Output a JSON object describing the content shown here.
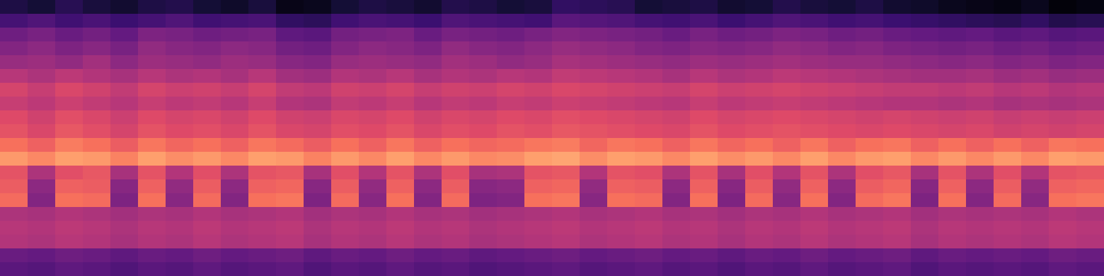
{
  "chart_data": {
    "type": "heatmap",
    "tick_labels": false,
    "zlim": [
      -80,
      0
    ],
    "cells": [
      [
        -70,
        -72,
        -68,
        -71,
        -73,
        -70,
        -69,
        -72,
        -74,
        -71,
        -77,
        -76,
        -72,
        -70,
        -71,
        -73,
        -69,
        -70,
        -72,
        -71,
        -66,
        -67,
        -68,
        -72,
        -71,
        -70,
        -73,
        -72,
        -69,
        -71,
        -72,
        -70,
        -73,
        -74,
        -76,
        -77,
        -78,
        -76,
        -79,
        -78
      ],
      [
        -62,
        -60,
        -63,
        -61,
        -64,
        -62,
        -60,
        -63,
        -62,
        -61,
        -66,
        -67,
        -63,
        -61,
        -62,
        -64,
        -60,
        -61,
        -62,
        -63,
        -58,
        -59,
        -60,
        -62,
        -63,
        -61,
        -64,
        -62,
        -60,
        -61,
        -63,
        -62,
        -64,
        -65,
        -66,
        -67,
        -68,
        -66,
        -69,
        -68
      ],
      [
        -54,
        -52,
        -55,
        -53,
        -56,
        -51,
        -52,
        -54,
        -53,
        -52,
        -57,
        -58,
        -53,
        -52,
        -51,
        -55,
        -52,
        -53,
        -54,
        -52,
        -50,
        -51,
        -52,
        -53,
        -55,
        -52,
        -54,
        -53,
        -51,
        -52,
        -54,
        -53,
        -55,
        -56,
        -57,
        -56,
        -58,
        -57,
        -59,
        -58
      ],
      [
        -50,
        -48,
        -51,
        -49,
        -52,
        -47,
        -49,
        -50,
        -48,
        -49,
        -53,
        -54,
        -50,
        -48,
        -49,
        -51,
        -47,
        -49,
        -50,
        -48,
        -46,
        -47,
        -48,
        -50,
        -51,
        -49,
        -50,
        -49,
        -47,
        -48,
        -50,
        -49,
        -51,
        -52,
        -53,
        -52,
        -54,
        -53,
        -55,
        -54
      ],
      [
        -46,
        -45,
        -47,
        -44,
        -48,
        -45,
        -46,
        -47,
        -45,
        -46,
        -49,
        -50,
        -46,
        -45,
        -46,
        -47,
        -44,
        -45,
        -47,
        -46,
        -43,
        -44,
        -45,
        -46,
        -47,
        -45,
        -46,
        -45,
        -44,
        -45,
        -46,
        -46,
        -47,
        -48,
        -49,
        -48,
        -50,
        -49,
        -51,
        -50
      ],
      [
        -40,
        -42,
        -39,
        -41,
        -43,
        -40,
        -42,
        -41,
        -43,
        -40,
        -44,
        -45,
        -41,
        -42,
        -40,
        -43,
        -41,
        -42,
        -40,
        -41,
        -38,
        -39,
        -40,
        -41,
        -43,
        -40,
        -42,
        -41,
        -39,
        -40,
        -41,
        -42,
        -43,
        -44,
        -44,
        -43,
        -45,
        -44,
        -46,
        -45
      ],
      [
        -34,
        -37,
        -33,
        -35,
        -38,
        -34,
        -36,
        -35,
        -37,
        -34,
        -38,
        -39,
        -35,
        -36,
        -34,
        -37,
        -35,
        -36,
        -34,
        -35,
        -33,
        -34,
        -35,
        -36,
        -37,
        -34,
        -36,
        -35,
        -34,
        -35,
        -36,
        -37,
        -38,
        -38,
        -39,
        -38,
        -40,
        -39,
        -41,
        -40
      ],
      [
        -37,
        -39,
        -36,
        -38,
        -40,
        -37,
        -39,
        -38,
        -40,
        -37,
        -41,
        -42,
        -38,
        -39,
        -37,
        -40,
        -38,
        -39,
        -37,
        -38,
        -36,
        -37,
        -38,
        -39,
        -40,
        -37,
        -39,
        -38,
        -37,
        -38,
        -39,
        -40,
        -41,
        -41,
        -42,
        -41,
        -43,
        -42,
        -43,
        -42
      ],
      [
        -32,
        -35,
        -31,
        -33,
        -36,
        -32,
        -34,
        -33,
        -35,
        -32,
        -35,
        -36,
        -33,
        -34,
        -32,
        -35,
        -33,
        -34,
        -32,
        -33,
        -31,
        -32,
        -33,
        -34,
        -35,
        -32,
        -34,
        -33,
        -32,
        -33,
        -34,
        -35,
        -34,
        -35,
        -36,
        -35,
        -37,
        -36,
        -37,
        -36
      ],
      [
        -30,
        -33,
        -29,
        -31,
        -34,
        -30,
        -32,
        -31,
        -33,
        -30,
        -33,
        -34,
        -31,
        -32,
        -30,
        -33,
        -31,
        -32,
        -30,
        -31,
        -29,
        -30,
        -31,
        -32,
        -33,
        -30,
        -32,
        -31,
        -30,
        -31,
        -32,
        -33,
        -32,
        -33,
        -34,
        -33,
        -35,
        -34,
        -35,
        -34
      ],
      [
        -24,
        -27,
        -22,
        -24,
        -28,
        -23,
        -26,
        -24,
        -27,
        -23,
        -25,
        -28,
        -24,
        -27,
        -23,
        -27,
        -24,
        -26,
        -25,
        -23,
        -22,
        -26,
        -23,
        -24,
        -27,
        -23,
        -26,
        -24,
        -27,
        -23,
        -27,
        -24,
        -23,
        -27,
        -24,
        -27,
        -24,
        -27,
        -23,
        -24
      ],
      [
        -17,
        -20,
        -16,
        -17,
        -21,
        -16,
        -19,
        -17,
        -20,
        -16,
        -17,
        -21,
        -17,
        -20,
        -16,
        -20,
        -17,
        -20,
        -19,
        -16,
        -15,
        -19,
        -16,
        -17,
        -20,
        -16,
        -19,
        -17,
        -20,
        -16,
        -20,
        -17,
        -16,
        -20,
        -17,
        -20,
        -17,
        -20,
        -16,
        -17
      ],
      [
        -30,
        -42,
        -31,
        -29,
        -43,
        -30,
        -41,
        -31,
        -42,
        -30,
        -29,
        -43,
        -31,
        -41,
        -30,
        -42,
        -31,
        -43,
        -42,
        -30,
        -29,
        -41,
        -30,
        -31,
        -42,
        -30,
        -43,
        -31,
        -41,
        -30,
        -42,
        -31,
        -29,
        -43,
        -30,
        -42,
        -31,
        -41,
        -30,
        -29
      ],
      [
        -28,
        -48,
        -27,
        -28,
        -49,
        -27,
        -47,
        -28,
        -48,
        -27,
        -26,
        -49,
        -28,
        -47,
        -27,
        -48,
        -28,
        -49,
        -48,
        -27,
        -26,
        -47,
        -27,
        -28,
        -48,
        -27,
        -49,
        -28,
        -47,
        -27,
        -48,
        -28,
        -26,
        -49,
        -27,
        -48,
        -28,
        -47,
        -27,
        -26
      ],
      [
        -25,
        -50,
        -24,
        -25,
        -51,
        -24,
        -49,
        -25,
        -50,
        -24,
        -23,
        -51,
        -25,
        -49,
        -24,
        -50,
        -25,
        -51,
        -50,
        -24,
        -23,
        -49,
        -24,
        -25,
        -50,
        -24,
        -51,
        -25,
        -49,
        -24,
        -50,
        -25,
        -23,
        -51,
        -24,
        -50,
        -25,
        -49,
        -24,
        -23
      ],
      [
        -42,
        -43,
        -41,
        -42,
        -44,
        -42,
        -43,
        -41,
        -43,
        -42,
        -41,
        -44,
        -42,
        -43,
        -41,
        -43,
        -42,
        -44,
        -43,
        -42,
        -41,
        -43,
        -42,
        -41,
        -43,
        -42,
        -44,
        -42,
        -43,
        -41,
        -43,
        -42,
        -41,
        -44,
        -42,
        -43,
        -42,
        -43,
        -41,
        -42
      ],
      [
        -40,
        -41,
        -39,
        -40,
        -42,
        -40,
        -41,
        -39,
        -41,
        -40,
        -39,
        -42,
        -40,
        -41,
        -39,
        -41,
        -40,
        -42,
        -41,
        -40,
        -39,
        -41,
        -40,
        -39,
        -41,
        -40,
        -42,
        -40,
        -41,
        -39,
        -41,
        -40,
        -39,
        -42,
        -40,
        -41,
        -40,
        -41,
        -39,
        -40
      ],
      [
        -41,
        -42,
        -40,
        -41,
        -43,
        -41,
        -42,
        -40,
        -42,
        -41,
        -40,
        -43,
        -41,
        -42,
        -40,
        -42,
        -41,
        -43,
        -42,
        -41,
        -40,
        -42,
        -41,
        -40,
        -42,
        -41,
        -43,
        -41,
        -42,
        -40,
        -42,
        -41,
        -40,
        -43,
        -41,
        -42,
        -41,
        -42,
        -40,
        -41
      ],
      [
        -55,
        -56,
        -54,
        -55,
        -57,
        -55,
        -56,
        -54,
        -56,
        -55,
        -54,
        -57,
        -55,
        -56,
        -54,
        -56,
        -55,
        -57,
        -56,
        -55,
        -54,
        -56,
        -55,
        -54,
        -56,
        -55,
        -57,
        -55,
        -56,
        -54,
        -56,
        -55,
        -54,
        -57,
        -55,
        -56,
        -55,
        -56,
        -54,
        -55
      ],
      [
        -58,
        -59,
        -57,
        -58,
        -60,
        -58,
        -59,
        -57,
        -59,
        -58,
        -57,
        -60,
        -58,
        -59,
        -57,
        -59,
        -58,
        -60,
        -59,
        -58,
        -57,
        -59,
        -58,
        -57,
        -59,
        -58,
        -60,
        -58,
        -59,
        -57,
        -59,
        -58,
        -57,
        -60,
        -58,
        -59,
        -58,
        -59,
        -57,
        -58
      ]
    ]
  }
}
